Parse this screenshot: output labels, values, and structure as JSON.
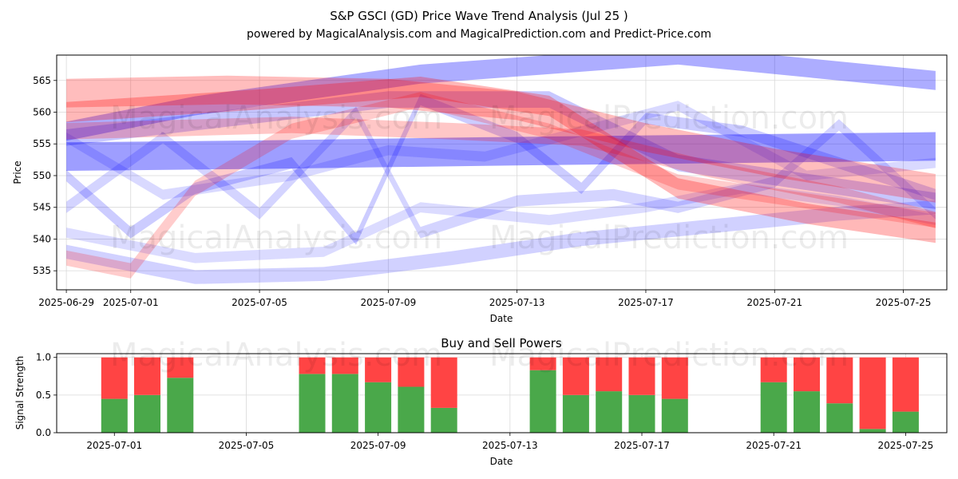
{
  "title_line1": "S&P GSCI (GD) Price Wave Trend Analysis (Jul 25 )",
  "title_line2": "powered by MagicalAnalysis.com and MagicalPrediction.com and Predict-Price.com",
  "watermarks": [
    "MagicalAnalysis.com",
    "MagicalPrediction.com"
  ],
  "chart_data": [
    {
      "type": "area",
      "title": "S&P GSCI (GD) Price Wave Trend Analysis (Jul 25 )",
      "xlabel": "Date",
      "ylabel": "Price",
      "xlim": [
        "2025-06-29",
        "2025-07-26"
      ],
      "ylim": [
        532,
        569
      ],
      "x_ticks": [
        "2025-06-29",
        "2025-07-01",
        "2025-07-05",
        "2025-07-09",
        "2025-07-13",
        "2025-07-17",
        "2025-07-21",
        "2025-07-25"
      ],
      "y_ticks": [
        535,
        540,
        545,
        550,
        555,
        560,
        565
      ],
      "grid": true,
      "colors": {
        "blue": "#0000ff",
        "red": "#ff0000"
      },
      "series": [
        {
          "name": "blue-band-upper",
          "color": "blue",
          "opacity": 0.32,
          "width": 3.0,
          "x": [
            "2025-06-29",
            "2025-07-03",
            "2025-07-10",
            "2025-07-18",
            "2025-07-26"
          ],
          "values": [
            557,
            561,
            566,
            569,
            565
          ]
        },
        {
          "name": "blue-band-flat",
          "color": "blue",
          "opacity": 0.38,
          "width": 4.5,
          "x": [
            "2025-06-29",
            "2025-07-05",
            "2025-07-12",
            "2025-07-19",
            "2025-07-26"
          ],
          "values": [
            553,
            553.3,
            553.8,
            554.2,
            554.6
          ]
        },
        {
          "name": "blue-band-low",
          "color": "blue",
          "opacity": 0.18,
          "width": 2.2,
          "x": [
            "2025-06-29",
            "2025-07-03",
            "2025-07-07",
            "2025-07-11",
            "2025-07-15",
            "2025-07-19",
            "2025-07-23",
            "2025-07-26"
          ],
          "values": [
            538,
            534,
            534.5,
            537,
            540,
            542,
            544,
            545
          ]
        },
        {
          "name": "blue-wave-a",
          "color": "blue",
          "opacity": 0.2,
          "width": 1.8,
          "x": [
            "2025-06-29",
            "2025-07-01",
            "2025-07-03",
            "2025-07-06",
            "2025-07-08",
            "2025-07-10",
            "2025-07-13",
            "2025-07-15",
            "2025-07-17",
            "2025-07-20",
            "2025-07-23",
            "2025-07-26"
          ],
          "values": [
            550,
            541,
            548,
            552,
            540,
            562,
            556,
            548,
            559,
            557,
            552,
            547
          ]
        },
        {
          "name": "blue-wave-b",
          "color": "blue",
          "opacity": 0.17,
          "width": 1.8,
          "x": [
            "2025-06-29",
            "2025-07-02",
            "2025-07-05",
            "2025-07-08",
            "2025-07-10",
            "2025-07-13",
            "2025-07-16",
            "2025-07-18",
            "2025-07-21",
            "2025-07-23",
            "2025-07-26"
          ],
          "values": [
            545,
            556,
            544,
            560,
            541,
            546,
            547,
            545,
            549,
            558,
            544
          ]
        },
        {
          "name": "blue-wave-c",
          "color": "blue",
          "opacity": 0.15,
          "width": 1.6,
          "x": [
            "2025-06-29",
            "2025-07-02",
            "2025-07-06",
            "2025-07-09",
            "2025-07-12",
            "2025-07-15",
            "2025-07-18",
            "2025-07-22",
            "2025-07-26"
          ],
          "values": [
            556,
            547,
            550,
            554,
            553,
            557,
            561,
            550,
            552
          ]
        },
        {
          "name": "blue-wave-d",
          "color": "blue",
          "opacity": 0.14,
          "width": 1.6,
          "x": [
            "2025-06-29",
            "2025-07-03",
            "2025-07-07",
            "2025-07-10",
            "2025-07-14",
            "2025-07-17",
            "2025-07-20",
            "2025-07-23",
            "2025-07-26"
          ],
          "values": [
            541,
            537,
            538,
            545,
            543,
            545,
            548,
            546,
            543
          ]
        },
        {
          "name": "purple-band",
          "color": "blue",
          "opacity": 0.22,
          "width": 2.6,
          "x": [
            "2025-06-29",
            "2025-07-04",
            "2025-07-09",
            "2025-07-14",
            "2025-07-18",
            "2025-07-22",
            "2025-07-26"
          ],
          "values": [
            556,
            559,
            562,
            562,
            552,
            549,
            546
          ]
        },
        {
          "name": "red-band-main",
          "color": "red",
          "opacity": 0.28,
          "width": 3.2,
          "x": [
            "2025-06-29",
            "2025-07-05",
            "2025-07-10",
            "2025-07-14",
            "2025-07-18",
            "2025-07-22",
            "2025-07-26"
          ],
          "values": [
            560,
            562,
            564,
            561,
            548,
            544,
            541
          ]
        },
        {
          "name": "red-band-top",
          "color": "red",
          "opacity": 0.26,
          "width": 4.5,
          "x": [
            "2025-06-29",
            "2025-07-04",
            "2025-07-09",
            "2025-07-13",
            "2025-07-17",
            "2025-07-21",
            "2025-07-26"
          ],
          "values": [
            563,
            563.5,
            563,
            561,
            556,
            552,
            548
          ]
        },
        {
          "name": "red-band-rise",
          "color": "red",
          "opacity": 0.2,
          "width": 2.4,
          "x": [
            "2025-06-29",
            "2025-07-01",
            "2025-07-03",
            "2025-07-06",
            "2025-07-10",
            "2025-07-14",
            "2025-07-18",
            "2025-07-22",
            "2025-07-26"
          ],
          "values": [
            537,
            535,
            548,
            557,
            562,
            557,
            549,
            546,
            543
          ]
        },
        {
          "name": "red-band-low",
          "color": "red",
          "opacity": 0.22,
          "width": 2.6,
          "x": [
            "2025-06-29",
            "2025-07-06",
            "2025-07-11",
            "2025-07-15",
            "2025-07-19",
            "2025-07-23",
            "2025-07-26"
          ],
          "values": [
            557,
            558,
            557,
            556,
            551,
            547,
            543
          ]
        }
      ]
    },
    {
      "type": "bar",
      "title": "Buy and Sell Powers",
      "xlabel": "Date",
      "ylabel": "Signal Strength",
      "xlim": [
        "2025-06-29",
        "2025-07-26"
      ],
      "ylim": [
        0,
        1.05
      ],
      "x_ticks": [
        "2025-07-01",
        "2025-07-05",
        "2025-07-09",
        "2025-07-13",
        "2025-07-17",
        "2025-07-21",
        "2025-07-25"
      ],
      "y_ticks": [
        "0.0",
        "0.5",
        "1.0"
      ],
      "grid": true,
      "colors": {
        "buy": "#4aa84a",
        "sell": "#ff4444"
      },
      "dates": [
        "2025-07-01",
        "2025-07-02",
        "2025-07-03",
        "2025-07-07",
        "2025-07-08",
        "2025-07-09",
        "2025-07-10",
        "2025-07-11",
        "2025-07-14",
        "2025-07-15",
        "2025-07-16",
        "2025-07-17",
        "2025-07-18",
        "2025-07-21",
        "2025-07-22",
        "2025-07-23",
        "2025-07-24",
        "2025-07-25"
      ],
      "series": [
        {
          "name": "Buy",
          "values": [
            0.45,
            0.5,
            0.73,
            0.78,
            0.78,
            0.67,
            0.61,
            0.33,
            0.83,
            0.5,
            0.55,
            0.5,
            0.45,
            0.67,
            0.55,
            0.39,
            0.05,
            0.28
          ]
        },
        {
          "name": "Sell",
          "values": [
            0.55,
            0.5,
            0.27,
            0.22,
            0.22,
            0.33,
            0.39,
            0.67,
            0.17,
            0.5,
            0.45,
            0.5,
            0.55,
            0.33,
            0.45,
            0.61,
            0.95,
            0.72
          ]
        }
      ]
    }
  ]
}
